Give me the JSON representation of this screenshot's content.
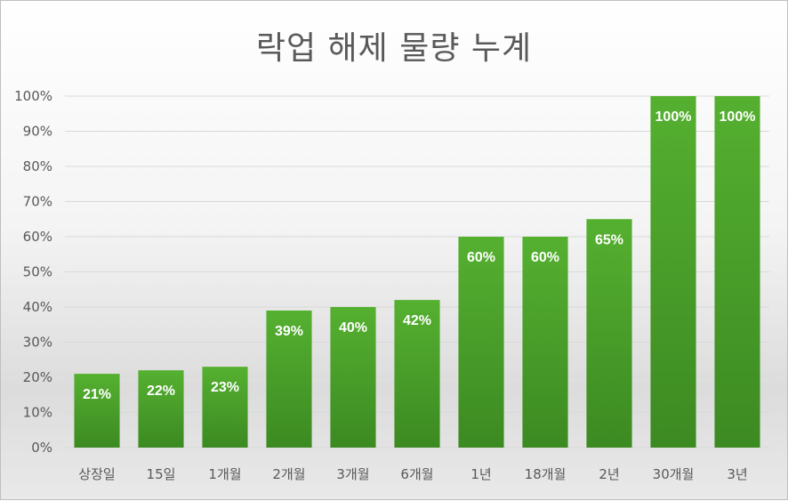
{
  "chart_data": {
    "type": "bar",
    "title": "락업 해제 물량 누계",
    "xlabel": "",
    "ylabel": "",
    "categories": [
      "상장일",
      "15일",
      "1개월",
      "2개월",
      "3개월",
      "6개월",
      "1년",
      "18개월",
      "2년",
      "30개월",
      "3년"
    ],
    "values": [
      21,
      22,
      23,
      39,
      40,
      42,
      60,
      60,
      65,
      100,
      100
    ],
    "data_labels": [
      "21%",
      "22%",
      "23%",
      "39%",
      "40%",
      "42%",
      "60%",
      "60%",
      "65%",
      "100%",
      "100%"
    ],
    "ylim": [
      0,
      100
    ],
    "yticks": [
      "0%",
      "10%",
      "20%",
      "30%",
      "40%",
      "50%",
      "60%",
      "70%",
      "80%",
      "90%",
      "100%"
    ],
    "grid": true,
    "legend": "none",
    "bar_color_top": "#55b030",
    "bar_color_bottom": "#3c8a22",
    "grid_color": "#d9d9d9",
    "text_color": "#595959"
  }
}
